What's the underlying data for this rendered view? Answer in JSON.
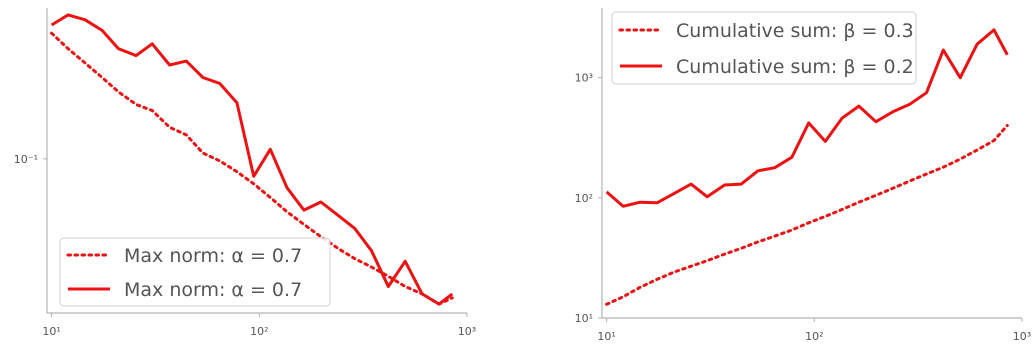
{
  "chart_data": [
    {
      "type": "line",
      "title": "",
      "xlabel": "",
      "ylabel": "",
      "x_scale": "log",
      "y_scale": "log",
      "xlim": [
        9.5,
        1000
      ],
      "ylim": [
        0.0215,
        0.45
      ],
      "x_ticks": [
        10,
        100,
        1000
      ],
      "x_tick_labels": [
        "10¹",
        "10²",
        "10³"
      ],
      "y_ticks": [
        0.1
      ],
      "y_tick_labels": [
        "10⁻¹"
      ],
      "grid": false,
      "legend_position": "lower-left",
      "series": [
        {
          "name": "Max norm: α = 0.7",
          "style": "dotted",
          "color": "#ee1111",
          "x": [
            10,
            12,
            14.5,
            17.5,
            21,
            25.5,
            30.5,
            37,
            44.5,
            53.5,
            64.5,
            78,
            94,
            113,
            136,
            164,
            198,
            239,
            288,
            347,
            418,
            504,
            608,
            733,
            850
          ],
          "y": [
            0.35,
            0.3,
            0.26,
            0.225,
            0.195,
            0.172,
            0.162,
            0.137,
            0.127,
            0.106,
            0.098,
            0.088,
            0.078,
            0.068,
            0.059,
            0.052,
            0.046,
            0.041,
            0.037,
            0.034,
            0.031,
            0.028,
            0.026,
            0.0235,
            0.025
          ]
        },
        {
          "name": "Max norm: α = 0.7",
          "style": "solid",
          "color": "#ee1111",
          "x": [
            10,
            12,
            14.5,
            17.5,
            21,
            25.5,
            30.5,
            37,
            44.5,
            53.5,
            64.5,
            78,
            94,
            113,
            136,
            164,
            198,
            239,
            288,
            347,
            418,
            504,
            608,
            733,
            850
          ],
          "y": [
            0.38,
            0.42,
            0.4,
            0.36,
            0.3,
            0.28,
            0.315,
            0.255,
            0.265,
            0.225,
            0.212,
            0.175,
            0.084,
            0.11,
            0.075,
            0.06,
            0.065,
            0.057,
            0.05,
            0.04,
            0.028,
            0.036,
            0.026,
            0.0235,
            0.026
          ]
        }
      ]
    },
    {
      "type": "line",
      "title": "",
      "xlabel": "",
      "ylabel": "",
      "x_scale": "log",
      "y_scale": "log",
      "xlim": [
        9.5,
        1000
      ],
      "ylim": [
        10,
        3800
      ],
      "x_ticks": [
        10,
        100,
        1000
      ],
      "x_tick_labels": [
        "10¹",
        "10²",
        "10³"
      ],
      "y_ticks": [
        10,
        100,
        1000
      ],
      "y_tick_labels": [
        "10¹",
        "10²",
        "10³"
      ],
      "grid": false,
      "legend_position": "top-left",
      "series": [
        {
          "name": "Cumulative sum: β = 0.3",
          "style": "dotted",
          "color": "#ee1111",
          "x": [
            10,
            12,
            14.5,
            17.5,
            21,
            25.5,
            30.5,
            37,
            44.5,
            53.5,
            64.5,
            78,
            94,
            113,
            136,
            164,
            198,
            239,
            288,
            347,
            418,
            504,
            608,
            733,
            850
          ],
          "y": [
            13,
            15,
            18,
            21,
            24,
            27,
            30,
            34,
            38,
            43,
            48,
            54,
            62,
            70,
            80,
            92,
            105,
            120,
            138,
            158,
            180,
            210,
            250,
            300,
            400
          ]
        },
        {
          "name": "Cumulative sum: β = 0.2",
          "style": "solid",
          "color": "#ee1111",
          "x": [
            10,
            12,
            14.5,
            17.5,
            21,
            25.5,
            30.5,
            37,
            44.5,
            53.5,
            64.5,
            78,
            94,
            113,
            136,
            164,
            198,
            239,
            288,
            347,
            418,
            504,
            608,
            733,
            850
          ],
          "y": [
            112,
            85,
            92,
            91,
            108,
            130,
            102,
            128,
            130,
            168,
            178,
            218,
            420,
            295,
            460,
            580,
            430,
            520,
            600,
            750,
            1700,
            1000,
            1900,
            2500,
            1550
          ]
        }
      ]
    }
  ]
}
